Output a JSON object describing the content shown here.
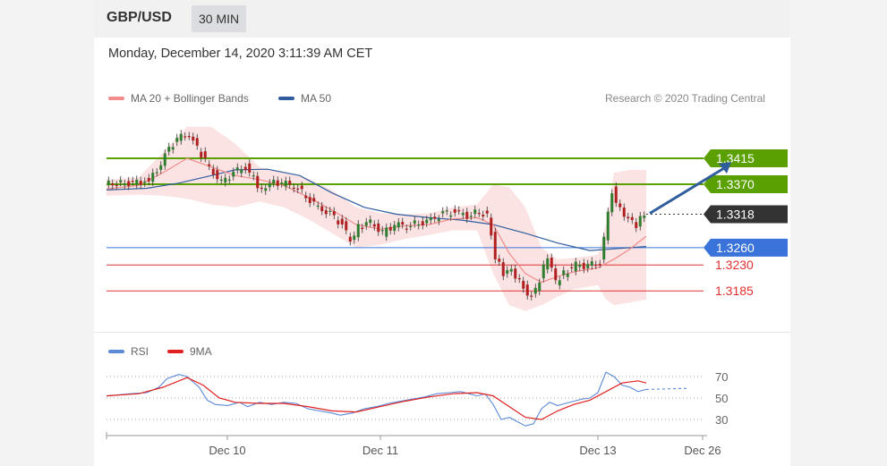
{
  "header": {
    "pair": "GBP/USD",
    "timeframe": "30 MIN"
  },
  "datetime": "Monday, December 14, 2020 3:11:39 AM CET",
  "legend": {
    "ma20": {
      "label": "MA 20 + Bollinger Bands",
      "color": "#f28b8b"
    },
    "ma50": {
      "label": "MA 50",
      "color": "#2f5d9e"
    },
    "credit": "Research © 2020 Trading Central"
  },
  "rsi_legend": {
    "rsi": {
      "label": "RSI",
      "color": "#5b8ad6"
    },
    "ma9": {
      "label": "9MA",
      "color": "#e02020"
    }
  },
  "chart_data": {
    "type": "line",
    "instrument": "GBP/USD",
    "interval": "30 MIN",
    "levels": [
      {
        "value": 1.3415,
        "label": "1.3415",
        "kind": "resistance",
        "color": "#5aa000",
        "tag": true
      },
      {
        "value": 1.337,
        "label": "1.3370",
        "kind": "resistance",
        "color": "#5aa000",
        "tag": true
      },
      {
        "value": 1.3318,
        "label": "1.3318",
        "kind": "last",
        "color": "#333333",
        "tag": true
      },
      {
        "value": 1.326,
        "label": "1.3260",
        "kind": "pivot",
        "color": "#3a73d9",
        "tag": true
      },
      {
        "value": 1.323,
        "label": "1.3230",
        "kind": "support",
        "color": "#e03030",
        "tag": false
      },
      {
        "value": 1.3185,
        "label": "1.3185",
        "kind": "support",
        "color": "#e03030",
        "tag": false
      }
    ],
    "price_path": [
      [
        0,
        1.337
      ],
      [
        6,
        1.3372
      ],
      [
        10,
        1.3375
      ],
      [
        13,
        1.339
      ],
      [
        15,
        1.3425
      ],
      [
        18,
        1.3448
      ],
      [
        21,
        1.3458
      ],
      [
        23,
        1.3432
      ],
      [
        26,
        1.34
      ],
      [
        29,
        1.3372
      ],
      [
        32,
        1.339
      ],
      [
        35,
        1.34
      ],
      [
        37,
        1.338
      ],
      [
        39,
        1.3358
      ],
      [
        41,
        1.3375
      ],
      [
        44,
        1.3372
      ],
      [
        47,
        1.3368
      ],
      [
        50,
        1.335
      ],
      [
        53,
        1.333
      ],
      [
        56,
        1.3318
      ],
      [
        59,
        1.33
      ],
      [
        61,
        1.327
      ],
      [
        63,
        1.3295
      ],
      [
        66,
        1.3305
      ],
      [
        69,
        1.3285
      ],
      [
        72,
        1.33
      ],
      [
        75,
        1.3298
      ],
      [
        78,
        1.3303
      ],
      [
        81,
        1.3308
      ],
      [
        84,
        1.3318
      ],
      [
        87,
        1.3322
      ],
      [
        90,
        1.3316
      ],
      [
        93,
        1.3322
      ],
      [
        95,
        1.3318
      ],
      [
        97,
        1.3245
      ],
      [
        99,
        1.3215
      ],
      [
        101,
        1.322
      ],
      [
        104,
        1.319
      ],
      [
        106,
        1.3175
      ],
      [
        108,
        1.3205
      ],
      [
        110,
        1.3245
      ],
      [
        112,
        1.32
      ],
      [
        114,
        1.3215
      ],
      [
        117,
        1.323
      ],
      [
        120,
        1.3228
      ],
      [
        123,
        1.3235
      ],
      [
        126,
        1.336
      ],
      [
        128,
        1.3325
      ],
      [
        130,
        1.3312
      ],
      [
        132,
        1.33
      ],
      [
        134,
        1.3318
      ]
    ],
    "ma20_path": [
      [
        0,
        1.3362
      ],
      [
        8,
        1.3368
      ],
      [
        14,
        1.339
      ],
      [
        20,
        1.3415
      ],
      [
        26,
        1.34
      ],
      [
        32,
        1.3385
      ],
      [
        38,
        1.3378
      ],
      [
        44,
        1.3368
      ],
      [
        50,
        1.3348
      ],
      [
        56,
        1.3325
      ],
      [
        62,
        1.33
      ],
      [
        68,
        1.3292
      ],
      [
        74,
        1.3298
      ],
      [
        80,
        1.33
      ],
      [
        86,
        1.331
      ],
      [
        92,
        1.3312
      ],
      [
        96,
        1.33
      ],
      [
        100,
        1.325
      ],
      [
        104,
        1.3215
      ],
      [
        108,
        1.32
      ],
      [
        112,
        1.321
      ],
      [
        116,
        1.3218
      ],
      [
        122,
        1.3225
      ],
      [
        126,
        1.324
      ],
      [
        130,
        1.3258
      ],
      [
        134,
        1.328
      ]
    ],
    "ma50_path": [
      [
        0,
        1.336
      ],
      [
        10,
        1.3363
      ],
      [
        18,
        1.3372
      ],
      [
        26,
        1.3385
      ],
      [
        32,
        1.3395
      ],
      [
        40,
        1.3396
      ],
      [
        48,
        1.3385
      ],
      [
        56,
        1.3355
      ],
      [
        64,
        1.333
      ],
      [
        72,
        1.3318
      ],
      [
        80,
        1.3312
      ],
      [
        88,
        1.3308
      ],
      [
        96,
        1.33
      ],
      [
        104,
        1.3285
      ],
      [
        112,
        1.3268
      ],
      [
        120,
        1.3255
      ],
      [
        126,
        1.3258
      ],
      [
        134,
        1.3262
      ]
    ],
    "bb_upper": [
      [
        0,
        1.3378
      ],
      [
        8,
        1.3382
      ],
      [
        14,
        1.3425
      ],
      [
        20,
        1.347
      ],
      [
        26,
        1.347
      ],
      [
        32,
        1.344
      ],
      [
        38,
        1.34
      ],
      [
        44,
        1.339
      ],
      [
        50,
        1.338
      ],
      [
        56,
        1.336
      ],
      [
        62,
        1.333
      ],
      [
        68,
        1.332
      ],
      [
        74,
        1.3318
      ],
      [
        80,
        1.332
      ],
      [
        86,
        1.333
      ],
      [
        92,
        1.3335
      ],
      [
        96,
        1.337
      ],
      [
        100,
        1.3365
      ],
      [
        104,
        1.333
      ],
      [
        108,
        1.326
      ],
      [
        112,
        1.324
      ],
      [
        116,
        1.3242
      ],
      [
        122,
        1.3248
      ],
      [
        124,
        1.33
      ],
      [
        126,
        1.339
      ],
      [
        130,
        1.3395
      ],
      [
        134,
        1.3395
      ]
    ],
    "bb_lower": [
      [
        0,
        1.335
      ],
      [
        8,
        1.3352
      ],
      [
        14,
        1.335
      ],
      [
        20,
        1.3345
      ],
      [
        26,
        1.3335
      ],
      [
        32,
        1.333
      ],
      [
        38,
        1.334
      ],
      [
        44,
        1.333
      ],
      [
        50,
        1.331
      ],
      [
        56,
        1.3285
      ],
      [
        62,
        1.326
      ],
      [
        68,
        1.3265
      ],
      [
        74,
        1.3275
      ],
      [
        80,
        1.3282
      ],
      [
        86,
        1.329
      ],
      [
        92,
        1.329
      ],
      [
        96,
        1.3215
      ],
      [
        100,
        1.316
      ],
      [
        104,
        1.315
      ],
      [
        108,
        1.316
      ],
      [
        112,
        1.3175
      ],
      [
        116,
        1.3188
      ],
      [
        122,
        1.3195
      ],
      [
        124,
        1.317
      ],
      [
        126,
        1.316
      ],
      [
        130,
        1.3165
      ],
      [
        134,
        1.317
      ]
    ],
    "forecast_arrow": {
      "from": [
        134,
        1.3318
      ],
      "to": [
        144,
        1.3415
      ]
    },
    "x_ticks": [
      {
        "x": 30,
        "label": "Dec 10"
      },
      {
        "x": 68,
        "label": "Dec 11"
      },
      {
        "x": 122,
        "label": "Dec 13"
      },
      {
        "x": 148,
        "label": "Dec 26"
      }
    ],
    "rsi": {
      "levels": [
        70,
        50,
        30
      ],
      "rsi_path": [
        [
          0,
          52
        ],
        [
          6,
          54
        ],
        [
          10,
          55
        ],
        [
          13,
          60
        ],
        [
          15,
          68
        ],
        [
          18,
          72
        ],
        [
          20,
          70
        ],
        [
          23,
          60
        ],
        [
          25,
          48
        ],
        [
          27,
          44
        ],
        [
          30,
          43
        ],
        [
          33,
          46
        ],
        [
          35,
          42
        ],
        [
          38,
          46
        ],
        [
          41,
          44
        ],
        [
          44,
          46
        ],
        [
          47,
          45
        ],
        [
          50,
          40
        ],
        [
          53,
          38
        ],
        [
          56,
          36
        ],
        [
          58,
          34
        ],
        [
          61,
          36
        ],
        [
          64,
          40
        ],
        [
          67,
          42
        ],
        [
          70,
          45
        ],
        [
          73,
          47
        ],
        [
          76,
          49
        ],
        [
          79,
          51
        ],
        [
          82,
          54
        ],
        [
          85,
          55
        ],
        [
          88,
          56
        ],
        [
          90,
          54
        ],
        [
          92,
          52
        ],
        [
          94,
          54
        ],
        [
          96,
          44
        ],
        [
          98,
          30
        ],
        [
          100,
          32
        ],
        [
          102,
          28
        ],
        [
          104,
          24
        ],
        [
          106,
          26
        ],
        [
          108,
          40
        ],
        [
          110,
          46
        ],
        [
          112,
          43
        ],
        [
          114,
          45
        ],
        [
          116,
          47
        ],
        [
          118,
          49
        ],
        [
          120,
          50
        ],
        [
          122,
          55
        ],
        [
          124,
          74
        ],
        [
          126,
          70
        ],
        [
          128,
          62
        ],
        [
          130,
          60
        ],
        [
          132,
          56
        ],
        [
          134,
          58
        ],
        [
          144,
          59
        ]
      ],
      "ma9_path": [
        [
          0,
          52
        ],
        [
          8,
          54
        ],
        [
          14,
          60
        ],
        [
          20,
          69
        ],
        [
          24,
          62
        ],
        [
          28,
          50
        ],
        [
          32,
          46
        ],
        [
          38,
          45
        ],
        [
          44,
          45
        ],
        [
          50,
          42
        ],
        [
          56,
          38
        ],
        [
          62,
          37
        ],
        [
          68,
          42
        ],
        [
          74,
          47
        ],
        [
          80,
          51
        ],
        [
          86,
          54
        ],
        [
          92,
          55
        ],
        [
          96,
          52
        ],
        [
          100,
          42
        ],
        [
          104,
          32
        ],
        [
          108,
          30
        ],
        [
          112,
          38
        ],
        [
          116,
          44
        ],
        [
          120,
          48
        ],
        [
          124,
          56
        ],
        [
          128,
          64
        ],
        [
          132,
          66
        ],
        [
          134,
          64
        ]
      ]
    }
  }
}
